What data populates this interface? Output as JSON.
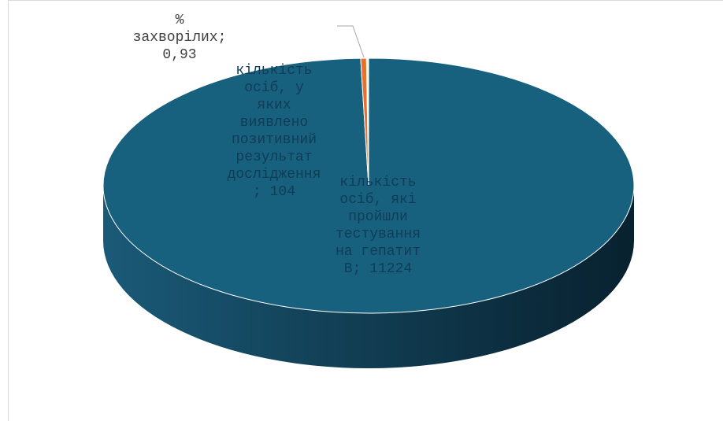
{
  "chart_data": {
    "type": "pie",
    "title": "",
    "is_3d": true,
    "slices": [
      {
        "label_lines": [
          "кількість",
          "осіб, які",
          "пройшли",
          "тестування",
          "на гепатит",
          "В; 11224"
        ],
        "value": 11224,
        "color": "#17607e"
      },
      {
        "label_lines": [
          "кількість",
          "осіб, у",
          "яких",
          "виявлено",
          "позитивний",
          "результат",
          "дослідження",
          "; 104"
        ],
        "value": 104,
        "color": "#ffffff"
      },
      {
        "label_lines": [
          "%",
          "захворілих;",
          "0,93"
        ],
        "value": 0.93,
        "color": "#e8702a"
      }
    ],
    "legend": "none"
  }
}
